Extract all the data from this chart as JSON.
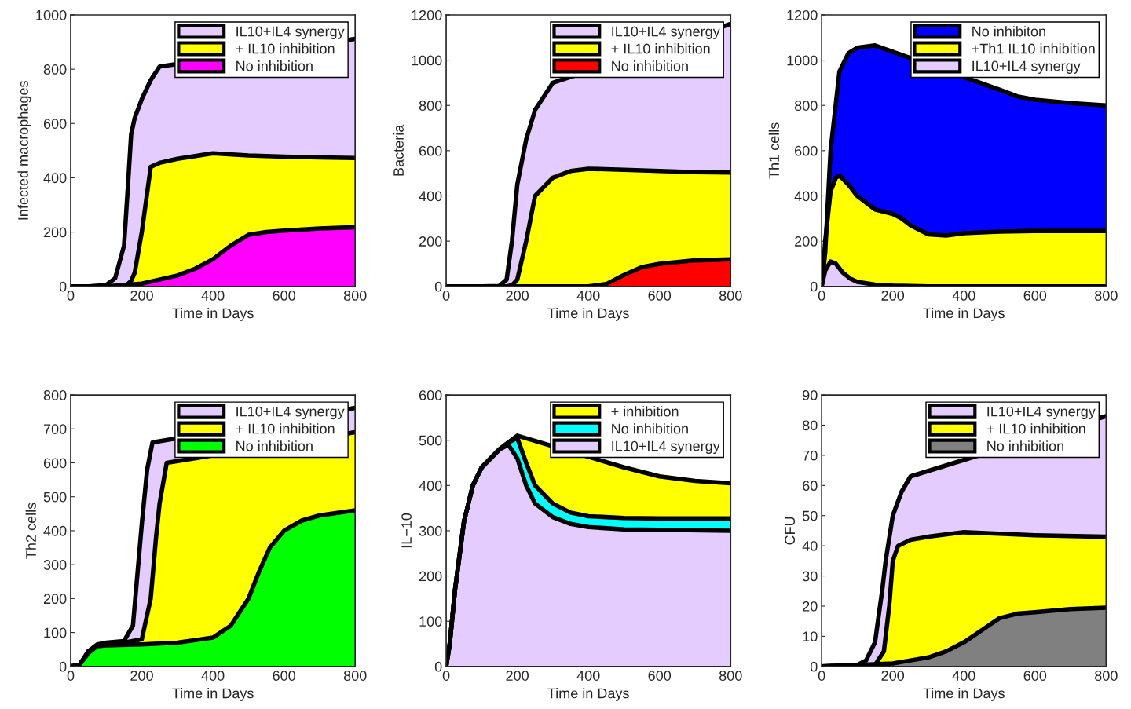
{
  "chart_data": [
    {
      "type": "area",
      "xlabel": "Time in Days",
      "ylabel": "Infected macrophages",
      "xlim": [
        0,
        800
      ],
      "xticks": [
        0,
        200,
        400,
        600,
        800
      ],
      "ylim": [
        0,
        1000
      ],
      "yticks": [
        0,
        200,
        400,
        600,
        800,
        1000
      ],
      "legend": "top right",
      "grid": false,
      "series": [
        {
          "name": "IL10+IL4 synergy",
          "color": "#e5ccff",
          "x": [
            0,
            50,
            100,
            125,
            150,
            160,
            170,
            180,
            200,
            225,
            250,
            300,
            400,
            500,
            600,
            700,
            800
          ],
          "values": [
            0,
            0,
            5,
            30,
            150,
            350,
            560,
            620,
            690,
            760,
            810,
            null,
            null,
            null,
            null,
            null,
            912
          ]
        },
        {
          "name": "+ IL10 inhibition",
          "color": "#ffff00",
          "x": [
            0,
            50,
            100,
            125,
            150,
            160,
            170,
            180,
            200,
            225,
            250,
            300,
            400,
            500,
            600,
            700,
            800
          ],
          "values": [
            0,
            0,
            0,
            0,
            3,
            8,
            20,
            50,
            200,
            440,
            455,
            470,
            490,
            482,
            478,
            475,
            473
          ]
        },
        {
          "name": "No inhibition",
          "color": "#ff00ff",
          "x": [
            0,
            100,
            200,
            300,
            350,
            400,
            450,
            500,
            550,
            600,
            700,
            800
          ],
          "values": [
            0,
            0,
            10,
            40,
            65,
            100,
            150,
            190,
            200,
            205,
            213,
            218
          ]
        }
      ]
    },
    {
      "type": "area",
      "xlabel": "Time in Days",
      "ylabel": "Bacteria",
      "xlim": [
        0,
        800
      ],
      "xticks": [
        0,
        200,
        400,
        600,
        800
      ],
      "ylim": [
        0,
        1200
      ],
      "yticks": [
        0,
        200,
        400,
        600,
        800,
        1000,
        1200
      ],
      "legend": "top right",
      "grid": false,
      "series": [
        {
          "name": "IL10+IL4 synergy",
          "color": "#e5ccff",
          "x": [
            0,
            100,
            150,
            170,
            185,
            200,
            225,
            250,
            300,
            350,
            400,
            500,
            600,
            700,
            800
          ],
          "values": [
            0,
            0,
            2,
            30,
            200,
            450,
            650,
            780,
            900,
            null,
            null,
            null,
            null,
            null,
            1160
          ]
        },
        {
          "name": "+ IL10 inhibition",
          "color": "#ffff00",
          "x": [
            0,
            100,
            150,
            170,
            185,
            200,
            225,
            250,
            300,
            350,
            400,
            500,
            600,
            700,
            800
          ],
          "values": [
            0,
            0,
            0,
            0,
            5,
            30,
            200,
            400,
            480,
            510,
            520,
            515,
            510,
            505,
            503
          ]
        },
        {
          "name": "No inhibition",
          "color": "#ff0000",
          "x": [
            0,
            400,
            450,
            500,
            550,
            600,
            700,
            800
          ],
          "values": [
            0,
            0,
            10,
            50,
            85,
            100,
            115,
            120
          ]
        }
      ]
    },
    {
      "type": "area",
      "xlabel": "Time in Days",
      "ylabel": "Th1 cells",
      "xlim": [
        0,
        800
      ],
      "xticks": [
        0,
        200,
        400,
        600,
        800
      ],
      "ylim": [
        0,
        1200
      ],
      "yticks": [
        0,
        200,
        400,
        600,
        800,
        1000,
        1200
      ],
      "legend": "top right",
      "grid": false,
      "series": [
        {
          "name": "No inhibiton",
          "color": "#0000ff",
          "x": [
            0,
            10,
            25,
            50,
            75,
            100,
            150,
            200,
            300,
            400,
            500,
            550,
            600,
            700,
            800
          ],
          "values": [
            0,
            150,
            600,
            950,
            1030,
            1055,
            1065,
            null,
            null,
            null,
            870,
            840,
            825,
            810,
            800
          ]
        },
        {
          "name": "+Th1 IL10 inhibition",
          "color": "#ffff00",
          "x": [
            0,
            10,
            25,
            40,
            50,
            75,
            100,
            150,
            200,
            225,
            250,
            300,
            350,
            400,
            500,
            600,
            800
          ],
          "values": [
            0,
            200,
            420,
            480,
            490,
            450,
            400,
            340,
            320,
            300,
            270,
            230,
            225,
            235,
            242,
            245,
            245
          ]
        },
        {
          "name": "IL10+IL4 synergy",
          "color": "#e5ccff",
          "x": [
            0,
            10,
            25,
            40,
            60,
            80,
            100,
            150,
            200,
            300,
            800
          ],
          "values": [
            0,
            70,
            110,
            100,
            60,
            35,
            20,
            8,
            3,
            0,
            0
          ]
        }
      ]
    },
    {
      "type": "area",
      "xlabel": "Time in Days",
      "ylabel": "Th2 cells",
      "xlim": [
        0,
        800
      ],
      "xticks": [
        0,
        200,
        400,
        600,
        800
      ],
      "ylim": [
        0,
        800
      ],
      "yticks": [
        0,
        100,
        200,
        300,
        400,
        500,
        600,
        700,
        800
      ],
      "legend": "top right",
      "grid": false,
      "series": [
        {
          "name": "IL10+IL4 synergy",
          "color": "#e5ccff",
          "x": [
            0,
            25,
            50,
            75,
            100,
            150,
            175,
            190,
            200,
            215,
            230,
            260,
            300,
            400,
            600,
            800
          ],
          "values": [
            0,
            5,
            45,
            65,
            70,
            75,
            120,
            300,
            420,
            580,
            660,
            null,
            null,
            null,
            null,
            762
          ]
        },
        {
          "name": "+ IL10 inhibition",
          "color": "#ffff00",
          "x": [
            0,
            25,
            50,
            75,
            100,
            150,
            200,
            225,
            240,
            250,
            270,
            300,
            400,
            600,
            800
          ],
          "values": [
            0,
            5,
            45,
            62,
            68,
            70,
            80,
            200,
            380,
            480,
            600,
            null,
            null,
            null,
            690
          ]
        },
        {
          "name": "No inhibition",
          "color": "#00ff00",
          "x": [
            0,
            25,
            50,
            75,
            100,
            200,
            300,
            400,
            450,
            500,
            530,
            560,
            600,
            650,
            700,
            800
          ],
          "values": [
            0,
            5,
            40,
            60,
            62,
            65,
            70,
            85,
            120,
            200,
            280,
            350,
            400,
            430,
            445,
            460
          ]
        }
      ]
    },
    {
      "type": "area",
      "xlabel": "Time in Days",
      "ylabel": "IL−10",
      "xlim": [
        0,
        800
      ],
      "xticks": [
        0,
        200,
        400,
        600,
        800
      ],
      "ylim": [
        0,
        600
      ],
      "yticks": [
        0,
        100,
        200,
        300,
        400,
        500,
        600
      ],
      "legend": "top right",
      "grid": false,
      "series": [
        {
          "name": "+ inhibition",
          "color": "#ffff00",
          "x": [
            0,
            10,
            25,
            50,
            75,
            100,
            150,
            175,
            200,
            250,
            300,
            400,
            500,
            600,
            700,
            800
          ],
          "values": [
            0,
            50,
            170,
            320,
            400,
            440,
            480,
            495,
            510,
            null,
            null,
            null,
            440,
            420,
            410,
            405
          ]
        },
        {
          "name": "No inhibition",
          "color": "#00ffff",
          "x": [
            0,
            10,
            25,
            50,
            75,
            100,
            150,
            175,
            200,
            225,
            250,
            300,
            350,
            400,
            500,
            600,
            800
          ],
          "values": [
            0,
            50,
            170,
            320,
            400,
            440,
            480,
            495,
            505,
            450,
            400,
            360,
            340,
            332,
            328,
            327,
            327
          ]
        },
        {
          "name": "IL10+IL4 synergy",
          "color": "#e5ccff",
          "x": [
            0,
            10,
            25,
            50,
            75,
            100,
            150,
            175,
            200,
            225,
            250,
            300,
            350,
            400,
            500,
            600,
            800
          ],
          "values": [
            0,
            50,
            170,
            320,
            400,
            440,
            480,
            490,
            460,
            400,
            360,
            330,
            315,
            308,
            303,
            302,
            300
          ]
        }
      ]
    },
    {
      "type": "area",
      "xlabel": "Time in Days",
      "ylabel": "CFU",
      "xlim": [
        0,
        800
      ],
      "xticks": [
        0,
        200,
        400,
        600,
        800
      ],
      "ylim": [
        0,
        90
      ],
      "yticks": [
        0,
        10,
        20,
        30,
        40,
        50,
        60,
        70,
        80,
        90
      ],
      "legend": "top right",
      "grid": false,
      "series": [
        {
          "name": "IL10+IL4 synergy",
          "color": "#e5ccff",
          "x": [
            0,
            100,
            125,
            150,
            170,
            180,
            200,
            225,
            250,
            300,
            400,
            500,
            600,
            800
          ],
          "values": [
            0,
            0.5,
            2,
            8,
            25,
            35,
            50,
            58,
            63,
            null,
            null,
            null,
            null,
            83
          ]
        },
        {
          "name": "+ IL10 inhibition",
          "color": "#ffff00",
          "x": [
            0,
            150,
            175,
            190,
            200,
            215,
            250,
            300,
            400,
            500,
            600,
            800
          ],
          "values": [
            0,
            0.5,
            5,
            20,
            35,
            40,
            42,
            43,
            44.5,
            44,
            43.5,
            43
          ]
        },
        {
          "name": "No inhibition",
          "color": "#808080",
          "x": [
            0,
            200,
            250,
            300,
            350,
            400,
            450,
            500,
            550,
            600,
            700,
            800
          ],
          "values": [
            0,
            1,
            2,
            3,
            5,
            8,
            12,
            16,
            17.5,
            18,
            19,
            19.5
          ]
        }
      ]
    }
  ]
}
